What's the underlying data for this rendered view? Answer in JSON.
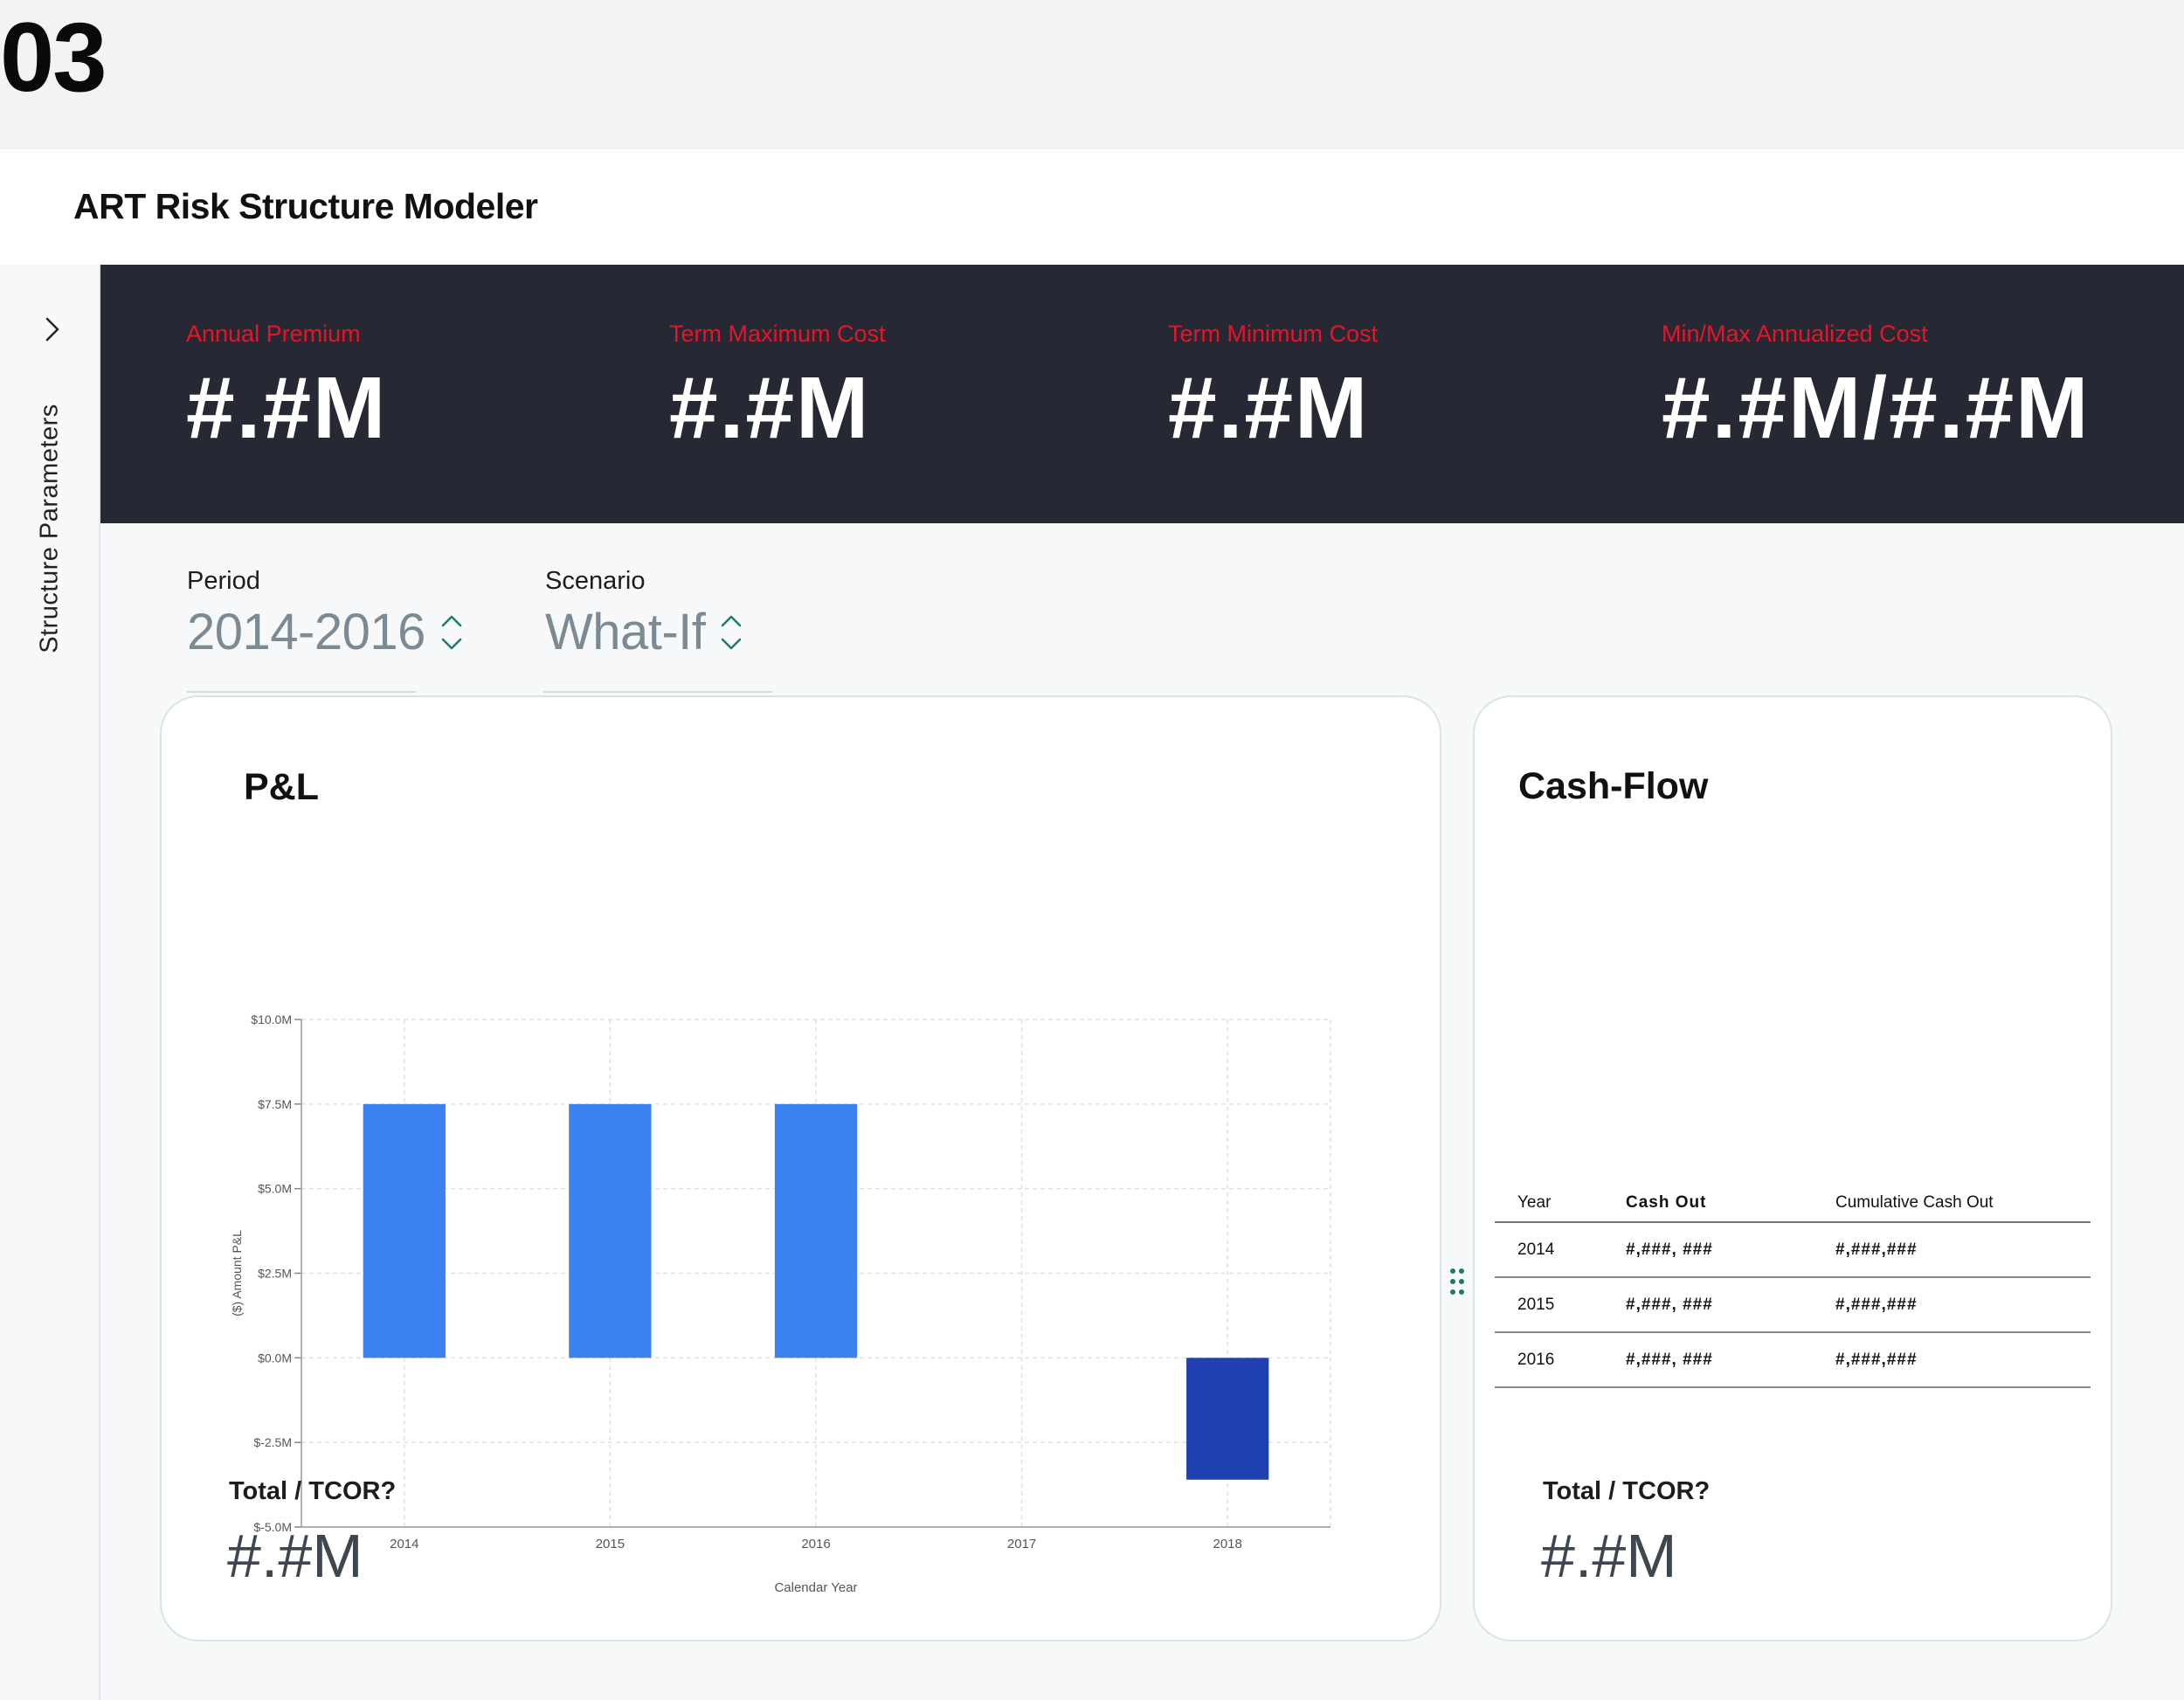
{
  "step_number": "03",
  "app": {
    "title": "ART Risk Structure Modeler"
  },
  "side_rail": {
    "label": "Structure Parameters",
    "toggle_icon": "chevron-right-icon"
  },
  "kpis": [
    {
      "label": "Annual Premium",
      "value": "#.#M"
    },
    {
      "label": "Term Maximum Cost",
      "value": "#.#M"
    },
    {
      "label": "Term Minimum Cost",
      "value": "#.#M"
    },
    {
      "label": "Min/Max Annualized Cost",
      "value": "#.#M/#.#M"
    }
  ],
  "colors": {
    "kpi_background": "#262833",
    "kpi_label": "#e8152a",
    "accent_teal": "#1f7a6e",
    "bar_positive": "#3b82f0",
    "bar_negative": "#1e40b0"
  },
  "selectors": {
    "period": {
      "label": "Period",
      "value": "2014-2016"
    },
    "scenario": {
      "label": "Scenario",
      "value": "What-If"
    }
  },
  "pl_card": {
    "title": "P&L",
    "total_label": "Total / TCOR?",
    "total_value": "#.#M"
  },
  "cashflow_card": {
    "title": "Cash-Flow",
    "total_label": "Total / TCOR?",
    "total_value": "#.#M",
    "table": {
      "headers": [
        "Year",
        "Cash Out",
        "Cumulative Cash Out"
      ],
      "rows": [
        [
          "2014",
          "#,###, ###",
          "#,###,###"
        ],
        [
          "2015",
          "#,###, ###",
          "#,###,###"
        ],
        [
          "2016",
          "#,###, ###",
          "#,###,###"
        ]
      ]
    }
  },
  "chart_data": {
    "type": "bar",
    "categories": [
      "2014",
      "2015",
      "2016",
      "2017",
      "2018"
    ],
    "values": [
      7.5,
      7.5,
      7.5,
      null,
      -3.6
    ],
    "xlabel": "Calendar Year",
    "ylabel": "($) Amount P&L",
    "ylim": [
      -5,
      10
    ],
    "yticks": [
      -5,
      -2.5,
      0,
      2.5,
      5,
      7.5,
      10
    ],
    "ytick_labels": [
      "$-5.0M",
      "$-2.5M",
      "$0.0M",
      "$2.5M",
      "$5.0M",
      "$7.5M",
      "$10.0M"
    ],
    "grid": true,
    "legend": "none"
  }
}
